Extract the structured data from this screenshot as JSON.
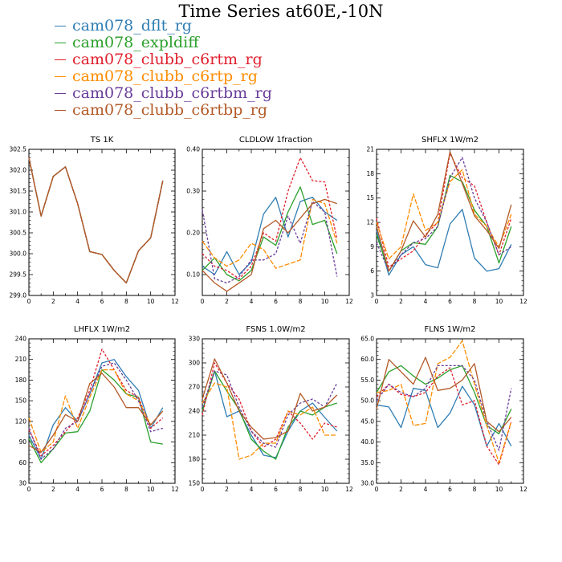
{
  "title": "Time Series at60E,-10N",
  "legend": [
    {
      "name": "cam078_dflt_rg",
      "color": "#2f7db3"
    },
    {
      "name": "cam078_expldiff",
      "color": "#2ca02c"
    },
    {
      "name": "cam078_clubb_c6rtm_rg",
      "color": "#e0202e"
    },
    {
      "name": "cam078_clubb_c6rtp_rg",
      "color": "#ff8c00"
    },
    {
      "name": "cam078_clubb_c6rtbm_rg",
      "color": "#6a3d9a"
    },
    {
      "name": "cam078_clubb_c6rtbp_rg",
      "color": "#b35a28"
    }
  ],
  "chart_data": [
    {
      "type": "line",
      "title": "TS   1K",
      "xlim": [
        0,
        12
      ],
      "ylim": [
        299.0,
        302.5
      ],
      "xticks": [
        0,
        2,
        4,
        6,
        8,
        10,
        12
      ],
      "yticks": [
        "299.0",
        "299.5",
        "300.0",
        "300.5",
        "301.0",
        "301.5",
        "302.0",
        "302.5"
      ],
      "x": [
        0,
        1,
        2,
        3,
        4,
        5,
        6,
        7,
        8,
        9,
        10,
        11
      ],
      "series": [
        {
          "name": "cam078_dflt_rg",
          "values": [
            302.3,
            300.9,
            301.85,
            302.08,
            301.2,
            300.05,
            299.98,
            299.6,
            299.3,
            300.07,
            300.38,
            301.75
          ]
        },
        {
          "name": "cam078_expldiff",
          "values": [
            302.3,
            300.9,
            301.85,
            302.08,
            301.2,
            300.05,
            299.98,
            299.6,
            299.3,
            300.07,
            300.38,
            301.75
          ]
        },
        {
          "name": "cam078_clubb_c6rtm_rg",
          "values": [
            302.3,
            300.9,
            301.85,
            302.08,
            301.2,
            300.05,
            299.98,
            299.6,
            299.3,
            300.07,
            300.38,
            301.75
          ]
        },
        {
          "name": "cam078_clubb_c6rtp_rg",
          "values": [
            302.3,
            300.9,
            301.85,
            302.08,
            301.2,
            300.05,
            299.98,
            299.6,
            299.3,
            300.07,
            300.38,
            301.75
          ]
        },
        {
          "name": "cam078_clubb_c6rtbm_rg",
          "values": [
            302.3,
            300.9,
            301.85,
            302.08,
            301.2,
            300.05,
            299.98,
            299.6,
            299.3,
            300.07,
            300.38,
            301.75
          ]
        },
        {
          "name": "cam078_clubb_c6rtbp_rg",
          "values": [
            302.3,
            300.9,
            301.85,
            302.08,
            301.2,
            300.05,
            299.98,
            299.6,
            299.3,
            300.07,
            300.38,
            301.75
          ]
        }
      ]
    },
    {
      "type": "line",
      "title": "CLDLOW   1fraction",
      "xlim": [
        0,
        12
      ],
      "ylim": [
        0.05,
        0.4
      ],
      "xticks": [
        0,
        2,
        4,
        6,
        8,
        10,
        12
      ],
      "yticks": [
        "0.10",
        "0.20",
        "0.30",
        "0.40"
      ],
      "x": [
        0,
        1,
        2,
        3,
        4,
        5,
        6,
        7,
        8,
        9,
        10,
        11
      ],
      "series": [
        {
          "name": "cam078_dflt_rg",
          "values": [
            0.12,
            0.1,
            0.155,
            0.1,
            0.13,
            0.245,
            0.285,
            0.19,
            0.275,
            0.285,
            0.25,
            0.23
          ]
        },
        {
          "name": "cam078_expldiff",
          "values": [
            0.11,
            0.14,
            0.1,
            0.085,
            0.11,
            0.19,
            0.17,
            0.25,
            0.31,
            0.22,
            0.23,
            0.15
          ]
        },
        {
          "name": "cam078_clubb_c6rtm_rg",
          "values": [
            0.15,
            0.12,
            0.11,
            0.09,
            0.12,
            0.2,
            0.18,
            0.3,
            0.38,
            0.325,
            0.322,
            0.185
          ]
        },
        {
          "name": "cam078_clubb_c6rtp_rg",
          "values": [
            0.18,
            0.14,
            0.12,
            0.135,
            0.175,
            0.16,
            0.115,
            0.125,
            0.135,
            0.28,
            0.27,
            0.175
          ]
        },
        {
          "name": "cam078_clubb_c6rtbm_rg",
          "values": [
            0.255,
            0.09,
            0.08,
            0.095,
            0.135,
            0.135,
            0.15,
            0.24,
            0.175,
            0.275,
            0.25,
            0.095
          ]
        },
        {
          "name": "cam078_clubb_c6rtbp_rg",
          "values": [
            0.11,
            0.08,
            0.06,
            0.08,
            0.1,
            0.21,
            0.23,
            0.2,
            0.235,
            0.27,
            0.28,
            0.27
          ]
        }
      ]
    },
    {
      "type": "line",
      "title": "SHFLX   1W/m2",
      "xlim": [
        0,
        12
      ],
      "ylim": [
        3,
        21
      ],
      "xticks": [
        0,
        2,
        4,
        6,
        8,
        10,
        12
      ],
      "yticks": [
        "3",
        "6",
        "9",
        "12",
        "15",
        "18",
        "21"
      ],
      "x": [
        0,
        1,
        2,
        3,
        4,
        5,
        6,
        7,
        8,
        9,
        10,
        11
      ],
      "series": [
        {
          "name": "cam078_dflt_rg",
          "values": [
            11.0,
            5.5,
            8.0,
            9.0,
            6.8,
            6.4,
            11.8,
            13.6,
            7.6,
            6.0,
            6.3,
            9.3
          ]
        },
        {
          "name": "cam078_expldiff",
          "values": [
            10.5,
            6.0,
            8.5,
            9.5,
            9.3,
            11.5,
            17.8,
            17.0,
            13.5,
            11.5,
            7.0,
            11.5
          ]
        },
        {
          "name": "cam078_clubb_c6rtm_rg",
          "values": [
            12.5,
            6.5,
            7.5,
            8.5,
            10.5,
            12.0,
            20.5,
            17.5,
            16.5,
            12.0,
            8.0,
            12.5
          ]
        },
        {
          "name": "cam078_clubb_c6rtp_rg",
          "values": [
            12.0,
            7.5,
            9.0,
            15.5,
            11.0,
            12.0,
            17.0,
            18.5,
            13.0,
            11.5,
            9.0,
            13.0
          ]
        },
        {
          "name": "cam078_clubb_c6rtbm_rg",
          "values": [
            9.5,
            6.0,
            8.0,
            9.5,
            10.0,
            11.5,
            17.5,
            20.0,
            15.0,
            12.0,
            8.0,
            9.0
          ]
        },
        {
          "name": "cam078_clubb_c6rtbp_rg",
          "values": [
            11.5,
            6.0,
            8.5,
            12.2,
            10.2,
            13.0,
            20.7,
            16.8,
            12.8,
            11.0,
            8.8,
            14.2
          ]
        }
      ]
    },
    {
      "type": "line",
      "title": "LHFLX   1W/m2",
      "xlim": [
        0,
        12
      ],
      "ylim": [
        30,
        240
      ],
      "xticks": [
        0,
        2,
        4,
        6,
        8,
        10,
        12
      ],
      "yticks": [
        "30",
        "60",
        "90",
        "120",
        "150",
        "180",
        "210",
        "240"
      ],
      "x": [
        0,
        1,
        2,
        3,
        4,
        5,
        6,
        7,
        8,
        9,
        10,
        11
      ],
      "series": [
        {
          "name": "cam078_dflt_rg",
          "values": [
            100,
            65,
            115,
            140,
            120,
            160,
            205,
            210,
            185,
            165,
            110,
            140
          ]
        },
        {
          "name": "cam078_expldiff",
          "values": [
            95,
            60,
            80,
            103,
            105,
            135,
            195,
            180,
            160,
            155,
            90,
            87
          ]
        },
        {
          "name": "cam078_clubb_c6rtm_rg",
          "values": [
            108,
            70,
            85,
            105,
            125,
            165,
            225,
            195,
            165,
            155,
            110,
            125
          ]
        },
        {
          "name": "cam078_clubb_c6rtp_rg",
          "values": [
            125,
            75,
            90,
            157,
            110,
            155,
            195,
            195,
            160,
            150,
            115,
            135
          ]
        },
        {
          "name": "cam078_clubb_c6rtbm_rg",
          "values": [
            110,
            65,
            80,
            110,
            120,
            160,
            200,
            205,
            180,
            150,
            105,
            110
          ]
        },
        {
          "name": "cam078_clubb_c6rtbp_rg",
          "values": [
            85,
            75,
            100,
            130,
            120,
            175,
            190,
            170,
            140,
            140,
            115,
            135
          ]
        }
      ]
    },
    {
      "type": "line",
      "title": "FSNS   1.0W/m2",
      "xlim": [
        0,
        12
      ],
      "ylim": [
        150,
        330
      ],
      "xticks": [
        0,
        2,
        4,
        6,
        8,
        10,
        12
      ],
      "yticks": [
        "150",
        "180",
        "210",
        "240",
        "270",
        "300",
        "330"
      ],
      "x": [
        0,
        1,
        2,
        3,
        4,
        5,
        6,
        7,
        8,
        9,
        10,
        11
      ],
      "series": [
        {
          "name": "cam078_dflt_rg",
          "values": [
            240,
            290,
            233,
            240,
            210,
            185,
            182,
            215,
            240,
            250,
            232,
            215
          ]
        },
        {
          "name": "cam078_expldiff",
          "values": [
            240,
            290,
            265,
            242,
            205,
            190,
            180,
            220,
            240,
            235,
            245,
            250
          ]
        },
        {
          "name": "cam078_clubb_c6rtm_rg",
          "values": [
            235,
            300,
            275,
            255,
            215,
            195,
            205,
            240,
            225,
            205,
            225,
            220
          ]
        },
        {
          "name": "cam078_clubb_c6rtp_rg",
          "values": [
            250,
            275,
            270,
            180,
            185,
            200,
            200,
            240,
            235,
            245,
            210,
            210
          ]
        },
        {
          "name": "cam078_clubb_c6rtbm_rg",
          "values": [
            245,
            290,
            285,
            245,
            215,
            200,
            195,
            235,
            250,
            255,
            245,
            275
          ]
        },
        {
          "name": "cam078_clubb_c6rtbp_rg",
          "values": [
            255,
            305,
            275,
            240,
            220,
            205,
            207,
            215,
            262,
            240,
            245,
            260
          ]
        }
      ]
    },
    {
      "type": "line",
      "title": "FLNS   1W/m2",
      "xlim": [
        0,
        12
      ],
      "ylim": [
        30.0,
        65.0
      ],
      "xticks": [
        0,
        2,
        4,
        6,
        8,
        10,
        12
      ],
      "yticks": [
        "30.0",
        "35.0",
        "40.0",
        "45.0",
        "50.0",
        "55.0",
        "60.0",
        "65.0"
      ],
      "x": [
        0,
        1,
        2,
        3,
        4,
        5,
        6,
        7,
        8,
        9,
        10,
        11
      ],
      "series": [
        {
          "name": "cam078_dflt_rg",
          "values": [
            49.0,
            48.5,
            43.5,
            53.0,
            52.5,
            43.5,
            47.0,
            53.5,
            49.0,
            39.0,
            44.5,
            39.0
          ]
        },
        {
          "name": "cam078_expldiff",
          "values": [
            52.0,
            57.0,
            58.5,
            56.0,
            54.0,
            55.5,
            57.5,
            58.5,
            52.0,
            44.0,
            42.0,
            48.0
          ]
        },
        {
          "name": "cam078_clubb_c6rtm_rg",
          "values": [
            51.0,
            54.0,
            51.5,
            51.0,
            52.0,
            56.0,
            58.0,
            49.0,
            50.0,
            39.0,
            34.5,
            45.0
          ]
        },
        {
          "name": "cam078_clubb_c6rtp_rg",
          "values": [
            52.0,
            52.5,
            54.0,
            44.0,
            44.5,
            59.0,
            60.5,
            64.5,
            54.0,
            44.0,
            35.0,
            45.0
          ]
        },
        {
          "name": "cam078_clubb_c6rtbm_rg",
          "values": [
            50.0,
            54.0,
            52.0,
            51.0,
            53.0,
            58.5,
            58.5,
            58.5,
            55.0,
            45.0,
            38.0,
            53.0
          ]
        },
        {
          "name": "cam078_clubb_c6rtbp_rg",
          "values": [
            48.0,
            60.0,
            57.0,
            54.0,
            60.5,
            52.5,
            53.0,
            55.0,
            59.0,
            45.0,
            42.5,
            46.0
          ]
        }
      ]
    }
  ]
}
